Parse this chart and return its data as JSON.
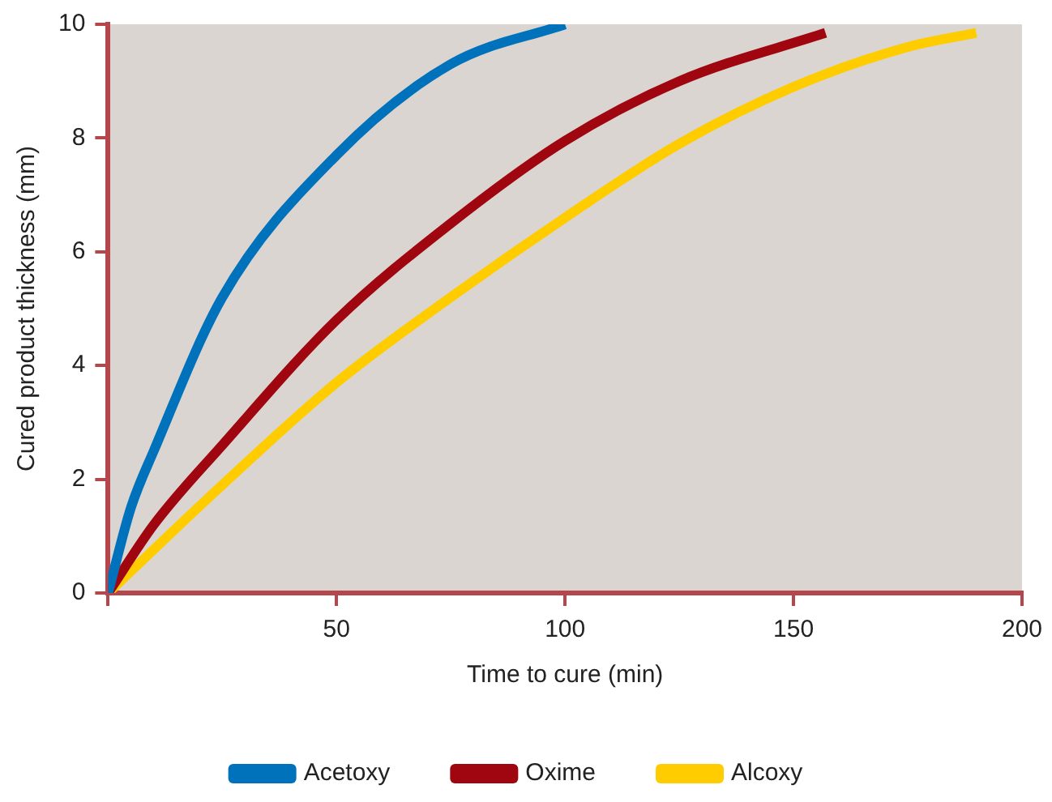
{
  "chart_data": {
    "type": "line",
    "xlabel": "Time to cure (min)",
    "ylabel": "Cured product thickness (mm)",
    "xlim": [
      0,
      200
    ],
    "xticks": [
      {
        "value": 0,
        "label": null
      },
      50,
      100,
      150,
      200
    ],
    "ylim": [
      0,
      10
    ],
    "yticks": [
      0,
      2,
      4,
      6,
      8,
      10
    ],
    "grid": false,
    "legend": "bottom",
    "marker": "none",
    "line_style": "solid",
    "series": [
      {
        "name": "Acetoxy",
        "color": "#0071bb",
        "x": [
          0,
          5,
          10,
          25,
          50,
          75,
          100
        ],
        "values": [
          0,
          1.5,
          2.5,
          5.2,
          7.7,
          9.3,
          10
        ]
      },
      {
        "name": "Oxime",
        "color": "#a0060f",
        "x": [
          0,
          10,
          25,
          50,
          75,
          100,
          125,
          157
        ],
        "values": [
          0,
          1.2,
          2.6,
          4.8,
          6.5,
          7.95,
          9.0,
          9.85
        ]
      },
      {
        "name": "Alcoxy",
        "color": "#ffcc00",
        "x": [
          0,
          25,
          50,
          75,
          100,
          125,
          150,
          175,
          190
        ],
        "values": [
          0,
          1.9,
          3.7,
          5.2,
          6.6,
          7.9,
          8.9,
          9.6,
          9.85
        ]
      }
    ]
  }
}
